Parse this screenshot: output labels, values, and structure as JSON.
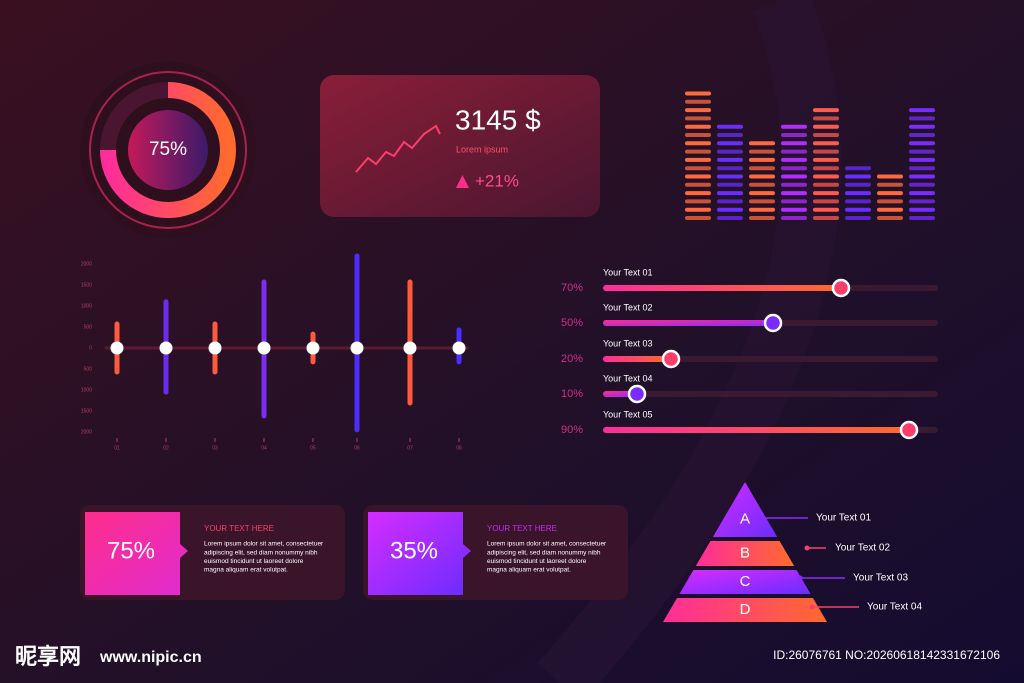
{
  "donut": {
    "label": "75%",
    "value": 75
  },
  "kpi": {
    "amount": "3145 $",
    "caption": "Lorem ipsum",
    "change": "+21%"
  },
  "equalizer": {
    "values": [
      16,
      12,
      10,
      12,
      14,
      7,
      6,
      14
    ],
    "colors": [
      "#ff6a3d",
      "#6a2cff",
      "#ff6a3d",
      "#b02cff",
      "#ff5a4a",
      "#6a2cff",
      "#ff6a3d",
      "#7a2cff"
    ]
  },
  "range_chart": {
    "categories": [
      "01",
      "02",
      "03",
      "04",
      "05",
      "06",
      "07",
      "08"
    ],
    "high": [
      570,
      1100,
      570,
      1570,
      330,
      2190,
      1570,
      430
    ],
    "low": [
      -570,
      -1050,
      -570,
      -1620,
      -330,
      -1950,
      -1310,
      -330
    ],
    "colors": [
      "#ff5a3c",
      "#6a2cf0",
      "#ff5a3c",
      "#7b2cf0",
      "#ff5a3c",
      "#4b2dff",
      "#ff5a3c",
      "#4b2dff"
    ],
    "ylim": [
      -2000,
      2000
    ],
    "yticks": [
      2000,
      1500,
      1000,
      500,
      0,
      {
        "value": -500,
        "label": "500"
      },
      {
        "value": -1000,
        "label": "1000"
      },
      {
        "value": -1500,
        "label": "1500"
      },
      {
        "value": -2000,
        "label": "2000"
      }
    ]
  },
  "sliders": [
    {
      "name": "Your Text 01",
      "label": "70%",
      "value": 70
    },
    {
      "name": "Your Text 02",
      "label": "50%",
      "value": 50
    },
    {
      "name": "Your Text 03",
      "label": "20%",
      "value": 20
    },
    {
      "name": "Your Text 04",
      "label": "10%",
      "value": 10
    },
    {
      "name": "Your Text 05",
      "label": "90%",
      "value": 90
    }
  ],
  "cards": [
    {
      "value": "75%",
      "title": "YOUR TEXT HERE",
      "lines": [
        "Lorem ipsum dolor sit amet, consectetuer",
        "adipiscing elit, sed diam nonummy nibh",
        "euismod tincidunt ut laoreet dolore",
        "magna aliquam erat volutpat."
      ]
    },
    {
      "value": "35%",
      "title": "YOUR TEXT HERE",
      "lines": [
        "Lorem ipsum dolor sit amet, consectetuer",
        "adipiscing elit, sed diam nonummy nibh",
        "euismod tincidunt ut laoreet dolore",
        "magna aliquam erat volutpat."
      ]
    }
  ],
  "pyramid": [
    {
      "letter": "A",
      "text": "Your Text 01"
    },
    {
      "letter": "B",
      "text": "Your Text 02"
    },
    {
      "letter": "C",
      "text": "Your Text 03"
    },
    {
      "letter": "D",
      "text": "Your Text 04"
    }
  ],
  "watermark": {
    "site_name": "昵享网",
    "url": "www.nipic.cn",
    "id": "ID:26076761 NO:20260618142331672106"
  }
}
